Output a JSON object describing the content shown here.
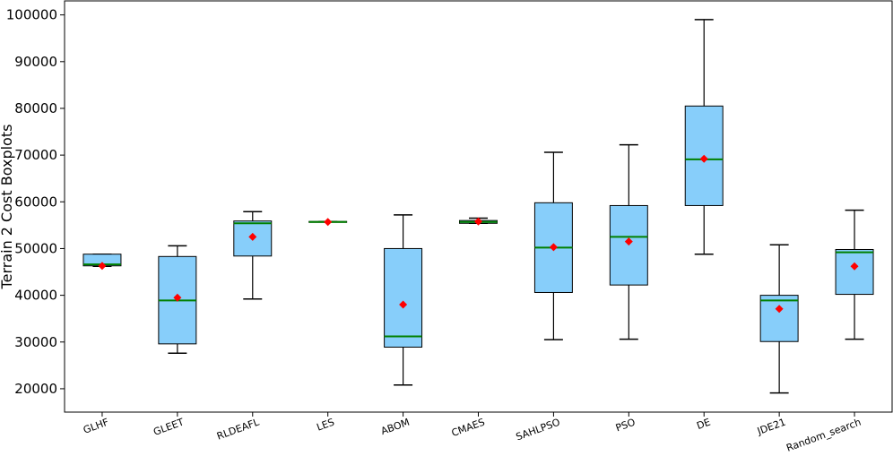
{
  "chart_data": {
    "type": "boxplot",
    "title": "",
    "xlabel": "",
    "ylabel": "Terrain 2 Cost Boxplots",
    "ylim": [
      15000,
      103000
    ],
    "yticks": [
      20000,
      30000,
      40000,
      50000,
      60000,
      70000,
      80000,
      90000,
      100000
    ],
    "ytick_labels": [
      "20000",
      "30000",
      "40000",
      "50000",
      "60000",
      "70000",
      "80000",
      "90000",
      "100000"
    ],
    "categories": [
      "GLHF",
      "GLEET",
      "RLDEAFL",
      "LES",
      "ABOM",
      "CMAES",
      "SAHLPSO",
      "PSO",
      "DE",
      "JDE21",
      "Random_search"
    ],
    "boxes": [
      {
        "name": "GLHF",
        "whislo": 46200,
        "q1": 46300,
        "med": 46600,
        "q3": 48800,
        "whishi": 48800,
        "mean": 46300
      },
      {
        "name": "GLEET",
        "whislo": 27600,
        "q1": 29600,
        "med": 38900,
        "q3": 48300,
        "whishi": 50600,
        "mean": 39500
      },
      {
        "name": "RLDEAFL",
        "whislo": 39200,
        "q1": 48400,
        "med": 55400,
        "q3": 55900,
        "whishi": 57900,
        "mean": 52500
      },
      {
        "name": "LES",
        "whislo": 55700,
        "q1": 55700,
        "med": 55700,
        "q3": 55800,
        "whishi": 55800,
        "mean": 55700
      },
      {
        "name": "ABOM",
        "whislo": 20800,
        "q1": 28900,
        "med": 31200,
        "q3": 50000,
        "whishi": 57200,
        "mean": 38000
      },
      {
        "name": "CMAES",
        "whislo": 55400,
        "q1": 55400,
        "med": 55700,
        "q3": 56000,
        "whishi": 56500,
        "mean": 55800
      },
      {
        "name": "SAHLPSO",
        "whislo": 30500,
        "q1": 40600,
        "med": 50200,
        "q3": 59800,
        "whishi": 70600,
        "mean": 50300
      },
      {
        "name": "PSO",
        "whislo": 30600,
        "q1": 42200,
        "med": 52500,
        "q3": 59200,
        "whishi": 72200,
        "mean": 51500
      },
      {
        "name": "DE",
        "whislo": 48800,
        "q1": 59200,
        "med": 69100,
        "q3": 80500,
        "whishi": 99000,
        "mean": 69200
      },
      {
        "name": "JDE21",
        "whislo": 19100,
        "q1": 30100,
        "med": 38900,
        "q3": 40000,
        "whishi": 50800,
        "mean": 37100
      },
      {
        "name": "Random_search",
        "whislo": 30600,
        "q1": 40200,
        "med": 49200,
        "q3": 49800,
        "whishi": 58200,
        "mean": 46200
      }
    ],
    "colors": {
      "box_fill": "#87cefa",
      "box_edge": "#000000",
      "median": "#008000",
      "mean_marker": "#ff0000",
      "whisker": "#000000"
    },
    "grid": false
  }
}
